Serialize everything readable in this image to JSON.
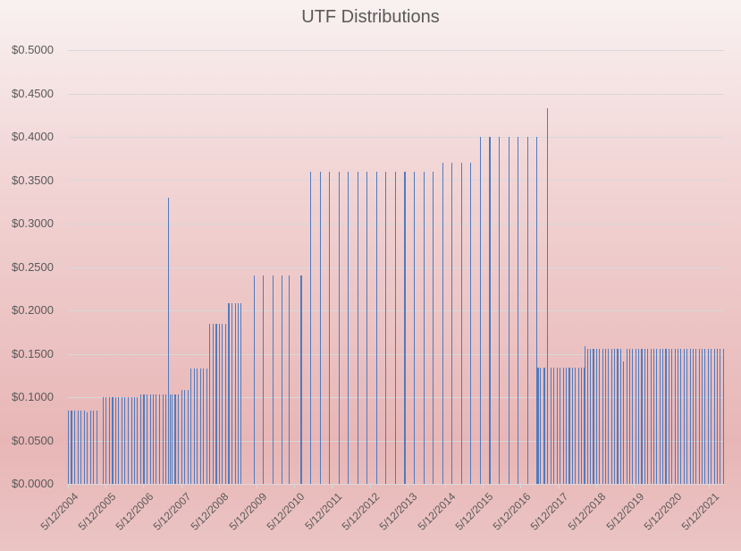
{
  "chart_data": {
    "type": "bar",
    "title": "UTF Distributions",
    "xlabel": "",
    "ylabel": "",
    "ylim": [
      0,
      0.5
    ],
    "y_ticks": [
      "$0.0000",
      "$0.0500",
      "$0.1000",
      "$0.1500",
      "$0.2000",
      "$0.2500",
      "$0.3000",
      "$0.3500",
      "$0.4000",
      "$0.4500",
      "$0.5000"
    ],
    "x_ticks": [
      "5/12/2004",
      "5/12/2005",
      "5/12/2006",
      "5/12/2007",
      "5/12/2008",
      "5/12/2009",
      "5/12/2010",
      "5/12/2011",
      "5/12/2012",
      "5/12/2013",
      "5/12/2014",
      "5/12/2015",
      "5/12/2016",
      "5/12/2017",
      "5/12/2018",
      "5/12/2019",
      "5/12/2020",
      "5/12/2021"
    ],
    "grid": true,
    "legend": null,
    "series": [
      {
        "name": "Distribution",
        "color": "#4f7bbf",
        "points": [
          [
            2004.0,
            0.085
          ],
          [
            2004.08,
            0.085
          ],
          [
            2004.17,
            0.085
          ],
          [
            2004.25,
            0.085
          ],
          [
            2004.33,
            0.085
          ],
          [
            2004.42,
            0.085
          ],
          [
            2004.5,
            0.083
          ],
          [
            2004.58,
            0.085
          ],
          [
            2004.67,
            0.085
          ],
          [
            2004.75,
            0.085
          ],
          [
            2004.92,
            0.1
          ],
          [
            2005.0,
            0.1
          ],
          [
            2005.08,
            0.1
          ],
          [
            2005.17,
            0.1
          ],
          [
            2005.25,
            0.1
          ],
          [
            2005.33,
            0.1
          ],
          [
            2005.42,
            0.1
          ],
          [
            2005.5,
            0.1
          ],
          [
            2005.58,
            0.1
          ],
          [
            2005.67,
            0.1
          ],
          [
            2005.75,
            0.1
          ],
          [
            2005.83,
            0.1
          ],
          [
            2005.92,
            0.103
          ],
          [
            2006.0,
            0.103
          ],
          [
            2006.08,
            0.103
          ],
          [
            2006.17,
            0.103
          ],
          [
            2006.25,
            0.103
          ],
          [
            2006.33,
            0.103
          ],
          [
            2006.42,
            0.103
          ],
          [
            2006.5,
            0.103
          ],
          [
            2006.58,
            0.103
          ],
          [
            2006.65,
            0.33
          ],
          [
            2006.7,
            0.103
          ],
          [
            2006.75,
            0.103
          ],
          [
            2006.83,
            0.103
          ],
          [
            2006.92,
            0.103
          ],
          [
            2007.0,
            0.108
          ],
          [
            2007.08,
            0.108
          ],
          [
            2007.17,
            0.108
          ],
          [
            2007.25,
            0.133
          ],
          [
            2007.33,
            0.133
          ],
          [
            2007.42,
            0.133
          ],
          [
            2007.5,
            0.133
          ],
          [
            2007.58,
            0.133
          ],
          [
            2007.67,
            0.133
          ],
          [
            2007.75,
            0.185
          ],
          [
            2007.83,
            0.185
          ],
          [
            2007.92,
            0.185
          ],
          [
            2008.0,
            0.185
          ],
          [
            2008.08,
            0.185
          ],
          [
            2008.17,
            0.185
          ],
          [
            2008.25,
            0.208
          ],
          [
            2008.33,
            0.208
          ],
          [
            2008.42,
            0.208
          ],
          [
            2008.5,
            0.208
          ],
          [
            2008.58,
            0.208
          ],
          [
            2008.92,
            0.24
          ],
          [
            2009.17,
            0.24
          ],
          [
            2009.42,
            0.24
          ],
          [
            2009.67,
            0.24
          ],
          [
            2009.85,
            0.24
          ],
          [
            2010.17,
            0.24
          ],
          [
            2010.42,
            0.36
          ],
          [
            2010.67,
            0.36
          ],
          [
            2010.92,
            0.36
          ],
          [
            2011.17,
            0.36
          ],
          [
            2011.42,
            0.36
          ],
          [
            2011.67,
            0.36
          ],
          [
            2011.92,
            0.36
          ],
          [
            2012.17,
            0.36
          ],
          [
            2012.42,
            0.36
          ],
          [
            2012.67,
            0.36
          ],
          [
            2012.92,
            0.36
          ],
          [
            2013.17,
            0.36
          ],
          [
            2013.42,
            0.36
          ],
          [
            2013.67,
            0.36
          ],
          [
            2013.92,
            0.37
          ],
          [
            2014.17,
            0.37
          ],
          [
            2014.42,
            0.37
          ],
          [
            2014.67,
            0.37
          ],
          [
            2014.92,
            0.4
          ],
          [
            2015.17,
            0.4
          ],
          [
            2015.42,
            0.4
          ],
          [
            2015.67,
            0.4
          ],
          [
            2015.92,
            0.4
          ],
          [
            2016.17,
            0.4
          ],
          [
            2016.42,
            0.4
          ],
          [
            2016.7,
            0.433
          ],
          [
            2016.45,
            0.134
          ],
          [
            2016.52,
            0.134
          ],
          [
            2016.6,
            0.134
          ],
          [
            2016.62,
            0.134
          ],
          [
            2016.8,
            0.134
          ],
          [
            2016.87,
            0.134
          ],
          [
            2016.95,
            0.134
          ],
          [
            2017.03,
            0.134
          ],
          [
            2017.12,
            0.134
          ],
          [
            2017.2,
            0.134
          ],
          [
            2017.28,
            0.134
          ],
          [
            2017.36,
            0.134
          ],
          [
            2017.44,
            0.134
          ],
          [
            2017.52,
            0.134
          ],
          [
            2017.6,
            0.134
          ],
          [
            2017.68,
            0.134
          ],
          [
            2017.7,
            0.159
          ],
          [
            2017.76,
            0.156
          ],
          [
            2017.84,
            0.156
          ],
          [
            2017.92,
            0.156
          ],
          [
            2018.0,
            0.156
          ],
          [
            2018.08,
            0.156
          ],
          [
            2018.16,
            0.156
          ],
          [
            2018.24,
            0.156
          ],
          [
            2018.32,
            0.156
          ],
          [
            2018.4,
            0.156
          ],
          [
            2018.48,
            0.156
          ],
          [
            2018.56,
            0.156
          ],
          [
            2018.64,
            0.156
          ],
          [
            2018.72,
            0.141
          ],
          [
            2018.8,
            0.156
          ],
          [
            2018.88,
            0.156
          ],
          [
            2018.96,
            0.156
          ],
          [
            2019.04,
            0.156
          ],
          [
            2019.12,
            0.156
          ],
          [
            2019.2,
            0.156
          ],
          [
            2019.28,
            0.156
          ],
          [
            2019.36,
            0.156
          ],
          [
            2019.44,
            0.156
          ],
          [
            2019.52,
            0.156
          ],
          [
            2019.6,
            0.156
          ],
          [
            2019.68,
            0.156
          ],
          [
            2019.76,
            0.156
          ],
          [
            2019.84,
            0.156
          ],
          [
            2019.92,
            0.156
          ],
          [
            2020.0,
            0.156
          ],
          [
            2020.08,
            0.156
          ],
          [
            2020.16,
            0.156
          ],
          [
            2020.24,
            0.156
          ],
          [
            2020.32,
            0.156
          ],
          [
            2020.4,
            0.156
          ],
          [
            2020.48,
            0.156
          ],
          [
            2020.56,
            0.156
          ],
          [
            2020.64,
            0.156
          ],
          [
            2020.72,
            0.156
          ],
          [
            2020.8,
            0.156
          ],
          [
            2020.88,
            0.156
          ],
          [
            2020.96,
            0.156
          ],
          [
            2021.04,
            0.156
          ],
          [
            2021.12,
            0.156
          ],
          [
            2021.2,
            0.156
          ],
          [
            2021.28,
            0.156
          ],
          [
            2021.36,
            0.156
          ]
        ]
      }
    ]
  }
}
